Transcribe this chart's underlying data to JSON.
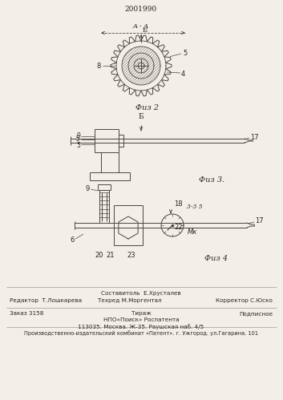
{
  "patent_number": "2001990",
  "bg_color": "#f2efe9",
  "text_color": "#2a2520",
  "line_color": "#4a4540",
  "fig2_label": "Физ 2",
  "fig3_label": "Физ 3.",
  "fig4_label": "Физ 4",
  "section_AA": "A - A",
  "section_33": "3-3 5",
  "arrow_b": "Б",
  "label_8": "8",
  "label_4": "4",
  "label_5_gear": "5",
  "label_9a": "9",
  "label_5a": "-5",
  "label_5b": "5",
  "label_17a": "17",
  "label_9b": "9",
  "label_6": "6",
  "label_18": "18",
  "label_22": "22",
  "label_17b": "17",
  "label_Mk": "Mк",
  "label_20": "20",
  "label_21": "21",
  "label_23": "23",
  "footer_r1_left": "Редактор  Т.Лошкарева",
  "footer_r1_c1": "Составитоль  Е.Хрусталев",
  "footer_r1_c2": "Техред М.Моргентал",
  "footer_r1_right": "Корректор С.Юско",
  "footer_r2_left": "Заказ 3158",
  "footer_r2_c1": "Тираж",
  "footer_r2_c2": "НПО«Поиск» Роспатента",
  "footer_r2_c3": "113035. Москва. Ж-35. Раушская наб. 4/5",
  "footer_r2_right": "Подписное",
  "footer_bottom": "Производственно-издательский комбинат «Патент». г. Ужгород. ул.Гагарина. 101"
}
